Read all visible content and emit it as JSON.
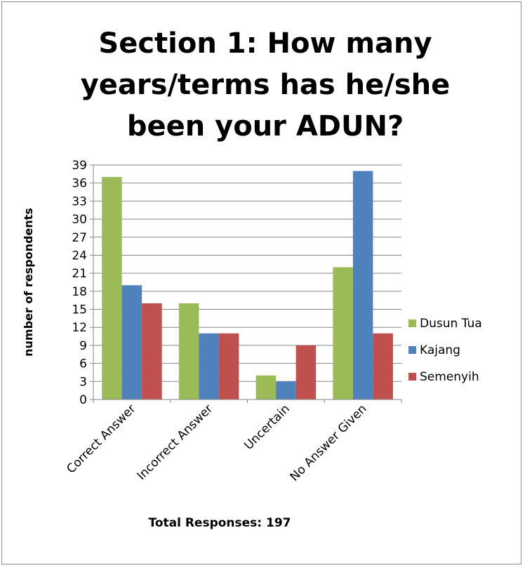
{
  "chart_data": {
    "type": "bar",
    "title": "Section 1: How many years/terms has he/she been your ADUN?",
    "xlabel": "Total Responses: 197",
    "ylabel": "number of respondents",
    "categories": [
      "Correct Answer",
      "Incorrect Answer",
      "Uncertain",
      "No Answer Given"
    ],
    "series": [
      {
        "name": "Dusun Tua",
        "values": [
          37,
          16,
          4,
          22
        ],
        "color": "#9bbb59"
      },
      {
        "name": "Kajang",
        "values": [
          19,
          11,
          3,
          38
        ],
        "color": "#4f81bd"
      },
      {
        "name": "Semenyih",
        "values": [
          16,
          11,
          9,
          11
        ],
        "color": "#c0504d"
      }
    ],
    "ylim": [
      0,
      39
    ],
    "yticks": [
      0,
      3,
      6,
      9,
      12,
      15,
      18,
      21,
      24,
      27,
      30,
      33,
      36,
      39
    ],
    "grid": true,
    "legend": "right"
  }
}
